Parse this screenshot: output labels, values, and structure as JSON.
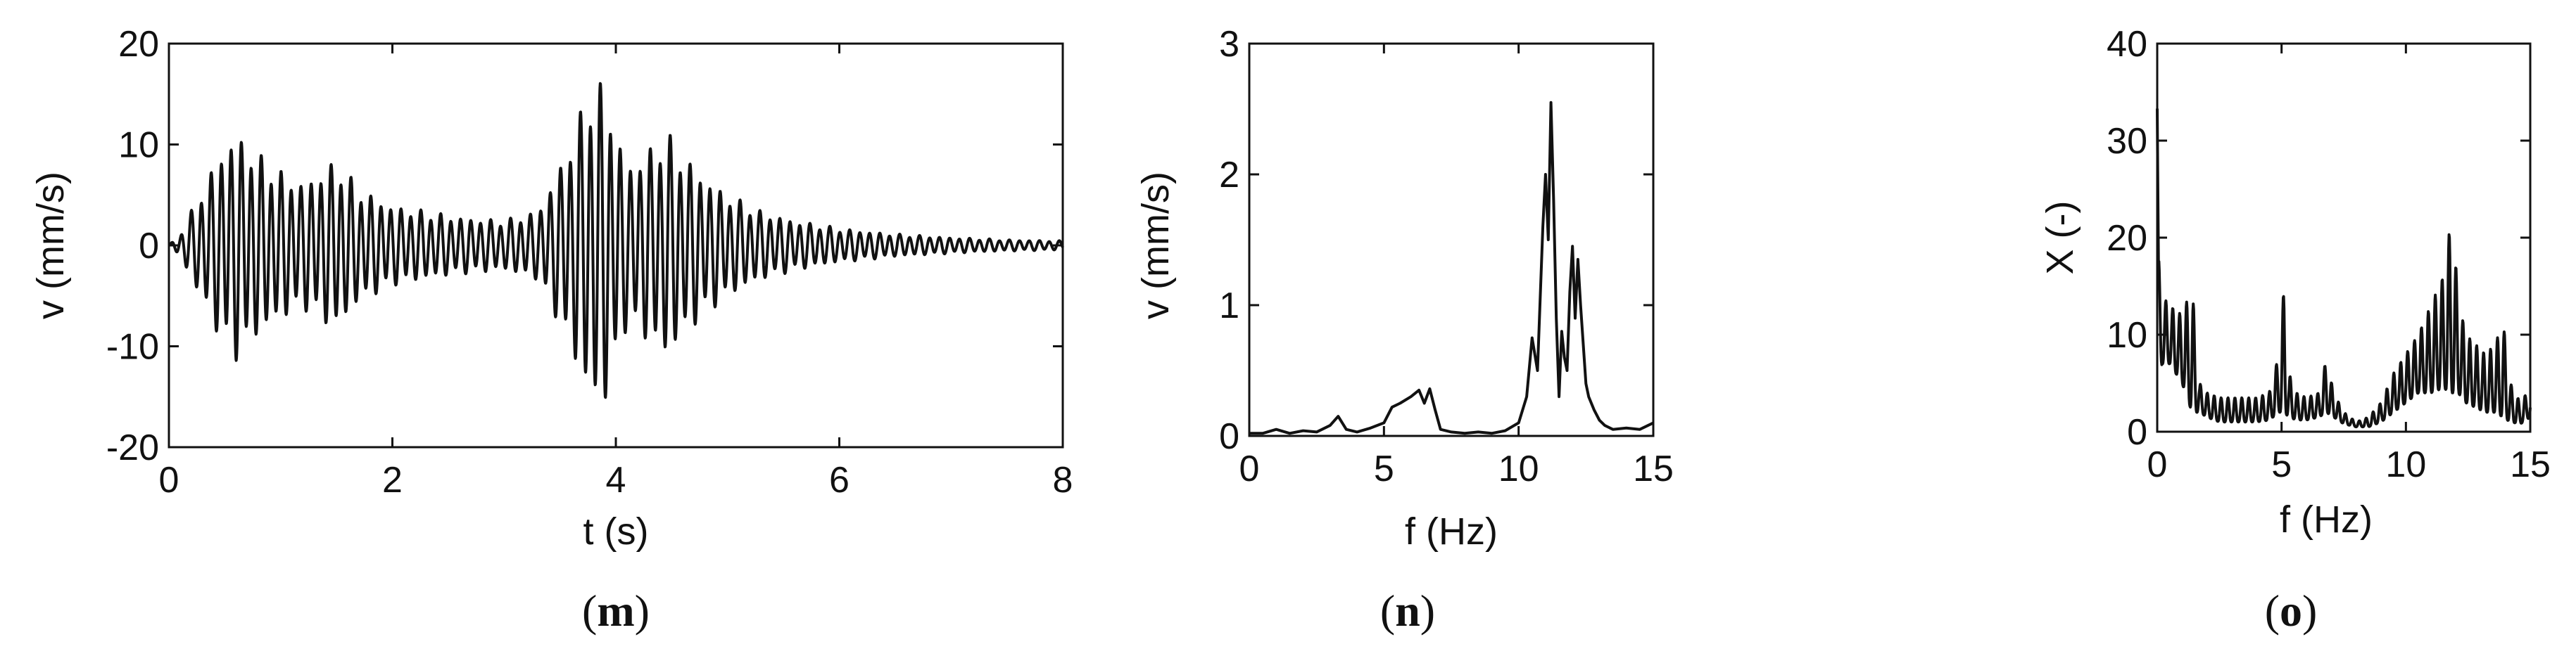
{
  "chart_data": [
    {
      "type": "line",
      "panel_label": "m",
      "xlabel": "t (s)",
      "ylabel": "v (mm/s)",
      "xlim": [
        0,
        8
      ],
      "ylim": [
        -20,
        20
      ],
      "xticks": [
        0,
        2,
        4,
        6,
        8
      ],
      "yticks": [
        -20,
        -10,
        0,
        10,
        20
      ],
      "xtick_labels": [
        "0",
        "2",
        "4",
        "6",
        "8"
      ],
      "ytick_labels": [
        "-20",
        "-10",
        "0",
        "10",
        "20"
      ],
      "envelope": {
        "t": [
          0,
          0.1,
          0.2,
          0.35,
          0.5,
          0.6,
          0.8,
          1.0,
          1.2,
          1.5,
          1.7,
          2.0,
          2.3,
          2.6,
          3.0,
          3.3,
          3.5,
          3.7,
          3.8,
          3.9,
          4.1,
          4.3,
          4.45,
          4.6,
          4.8,
          5.0,
          5.3,
          5.6,
          6.0,
          6.5,
          7.0,
          7.5,
          8.0
        ],
        "amp": [
          0,
          1,
          3,
          6,
          9,
          10,
          8,
          6.5,
          5.5,
          7.5,
          5,
          3.5,
          3,
          2.5,
          2.2,
          3,
          7,
          12,
          14.5,
          14,
          7,
          8.5,
          10,
          8,
          6,
          4.5,
          3,
          2.2,
          1.5,
          1,
          0.7,
          0.5,
          0.4
        ]
      },
      "dominant_frequency_hz": 11.2
    },
    {
      "type": "line",
      "panel_label": "n",
      "xlabel": "f (Hz)",
      "ylabel": "v (mm/s)",
      "xlim": [
        0,
        15
      ],
      "ylim": [
        0,
        3
      ],
      "xticks": [
        0,
        5,
        10,
        15
      ],
      "yticks": [
        0,
        1,
        2,
        3
      ],
      "xtick_labels": [
        "0",
        "5",
        "10",
        "15"
      ],
      "ytick_labels": [
        "0",
        "1",
        "2",
        "3"
      ],
      "x": [
        0,
        0.5,
        1,
        1.5,
        2,
        2.5,
        3,
        3.3,
        3.6,
        4,
        4.5,
        5,
        5.3,
        5.6,
        6,
        6.3,
        6.5,
        6.7,
        6.9,
        7.1,
        7.5,
        8,
        8.5,
        9,
        9.5,
        10,
        10.3,
        10.5,
        10.7,
        10.9,
        11.0,
        11.1,
        11.2,
        11.3,
        11.4,
        11.5,
        11.6,
        11.7,
        11.8,
        11.9,
        12.0,
        12.1,
        12.2,
        12.3,
        12.4,
        12.5,
        12.6,
        12.8,
        13.0,
        13.2,
        13.5,
        14,
        14.5,
        15
      ],
      "y": [
        0.02,
        0.02,
        0.05,
        0.02,
        0.04,
        0.03,
        0.08,
        0.15,
        0.05,
        0.03,
        0.06,
        0.1,
        0.22,
        0.25,
        0.3,
        0.35,
        0.25,
        0.36,
        0.2,
        0.05,
        0.03,
        0.02,
        0.03,
        0.02,
        0.04,
        0.1,
        0.3,
        0.75,
        0.5,
        1.6,
        2.0,
        1.5,
        2.55,
        1.8,
        0.9,
        0.3,
        0.8,
        0.6,
        0.5,
        1.1,
        1.45,
        0.9,
        1.35,
        1.0,
        0.7,
        0.4,
        0.3,
        0.2,
        0.12,
        0.08,
        0.05,
        0.06,
        0.05,
        0.1
      ]
    },
    {
      "type": "line",
      "panel_label": "o",
      "xlabel": "f (Hz)",
      "ylabel": "X (-)",
      "xlim": [
        0,
        15
      ],
      "ylim": [
        0,
        40
      ],
      "xticks": [
        0,
        5,
        10,
        15
      ],
      "yticks": [
        0,
        10,
        20,
        30,
        40
      ],
      "xtick_labels": [
        "0",
        "5",
        "10",
        "15"
      ],
      "ytick_labels": [
        "0",
        "10",
        "20",
        "30",
        "40"
      ],
      "envelope": {
        "f": [
          0,
          0.05,
          0.2,
          0.5,
          1.0,
          1.4,
          1.7,
          2.0,
          2.5,
          3.0,
          3.5,
          4.0,
          4.5,
          4.9,
          5.1,
          5.3,
          5.6,
          6.0,
          6.5,
          6.8,
          7.1,
          7.5,
          8.0,
          8.5,
          9.0,
          9.5,
          10.0,
          10.5,
          11.0,
          11.5,
          11.85,
          12.1,
          12.4,
          12.8,
          13.2,
          13.6,
          13.9,
          14.2,
          14.6,
          15.0
        ],
        "upper": [
          40,
          18,
          14,
          13,
          12,
          15,
          5,
          4,
          3.5,
          3.5,
          3.5,
          3.5,
          4,
          8,
          15,
          6,
          4,
          3.5,
          4,
          7.5,
          4,
          2,
          1,
          1.5,
          3,
          6,
          8,
          10,
          13,
          16,
          22.5,
          14,
          10,
          9,
          8,
          9,
          11.5,
          5,
          3,
          4.5
        ],
        "lower": [
          30,
          5,
          7,
          7,
          5,
          2,
          2,
          1.5,
          1,
          1,
          1,
          1,
          1.2,
          2,
          2,
          1.5,
          1.2,
          1.2,
          1.5,
          2,
          1.5,
          0.8,
          0.5,
          0.5,
          1,
          2,
          3,
          4,
          4,
          4.5,
          4,
          4,
          3,
          2.5,
          2,
          2,
          1.5,
          1,
          0.8,
          1.5
        ]
      }
    }
  ]
}
